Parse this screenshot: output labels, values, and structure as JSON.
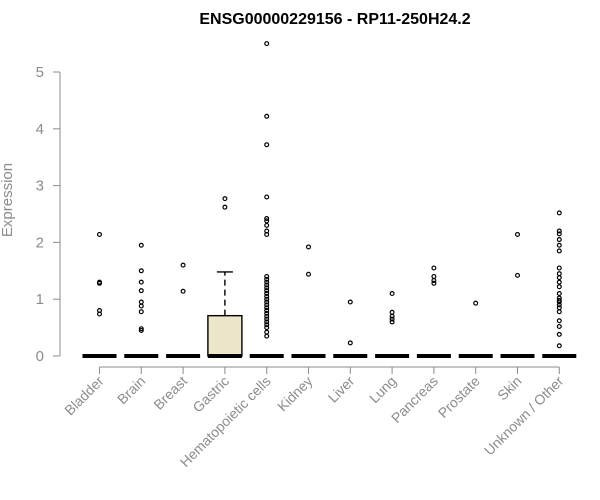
{
  "chart_data": {
    "type": "box",
    "title": "ENSG00000229156 - RP11-250H24.2",
    "xlabel": "",
    "ylabel": "Expression",
    "ylim": [
      0,
      5
    ],
    "yticks": [
      0,
      1,
      2,
      3,
      4,
      5
    ],
    "categories": [
      "Bladder",
      "Brain",
      "Breast",
      "Gastric",
      "Hematopoietic cells",
      "Kidney",
      "Liver",
      "Lung",
      "Pancreas",
      "Prostate",
      "Skin",
      "Unknown / Other"
    ],
    "series": [
      {
        "min": 0,
        "q1": 0,
        "median": 0,
        "q3": 0,
        "max": 0,
        "outliers": [
          2.14,
          1.3,
          1.28,
          0.8,
          0.74
        ]
      },
      {
        "min": 0,
        "q1": 0,
        "median": 0,
        "q3": 0,
        "max": 0,
        "outliers": [
          1.95,
          1.5,
          1.3,
          1.15,
          0.95,
          0.88,
          0.78,
          0.48,
          0.45
        ]
      },
      {
        "min": 0,
        "q1": 0,
        "median": 0,
        "q3": 0,
        "max": 0,
        "outliers": [
          1.6,
          1.14
        ]
      },
      {
        "min": 0,
        "q1": 0,
        "median": 0,
        "q3": 0.71,
        "max": 1.48,
        "outliers": [
          2.77,
          2.62
        ]
      },
      {
        "min": 0,
        "q1": 0,
        "median": 0,
        "q3": 0,
        "max": 0,
        "outliers": [
          5.5,
          4.22,
          3.72,
          2.8,
          2.42,
          2.38,
          2.3,
          2.2,
          2.14,
          1.4,
          1.35,
          1.3,
          1.25,
          1.2,
          1.15,
          1.1,
          1.05,
          1.0,
          0.95,
          0.9,
          0.85,
          0.8,
          0.75,
          0.7,
          0.65,
          0.6,
          0.55,
          0.5,
          0.42,
          0.35
        ]
      },
      {
        "min": 0,
        "q1": 0,
        "median": 0,
        "q3": 0,
        "max": 0,
        "outliers": [
          1.92,
          1.44
        ]
      },
      {
        "min": 0,
        "q1": 0,
        "median": 0,
        "q3": 0,
        "max": 0,
        "outliers": [
          0.95,
          0.23
        ]
      },
      {
        "min": 0,
        "q1": 0,
        "median": 0,
        "q3": 0,
        "max": 0,
        "outliers": [
          1.1,
          0.77,
          0.7,
          0.65,
          0.6
        ]
      },
      {
        "min": 0,
        "q1": 0,
        "median": 0,
        "q3": 0,
        "max": 0,
        "outliers": [
          1.55,
          1.4,
          1.33,
          1.28
        ]
      },
      {
        "min": 0,
        "q1": 0,
        "median": 0,
        "q3": 0,
        "max": 0,
        "outliers": [
          0.93
        ]
      },
      {
        "min": 0,
        "q1": 0,
        "median": 0,
        "q3": 0,
        "max": 0,
        "outliers": [
          2.14,
          1.42
        ]
      },
      {
        "min": 0,
        "q1": 0,
        "median": 0,
        "q3": 0,
        "max": 0,
        "outliers": [
          2.52,
          2.2,
          2.15,
          2.05,
          1.95,
          1.85,
          1.55,
          1.45,
          1.38,
          1.3,
          1.22,
          1.1,
          1.02,
          0.98,
          0.95,
          0.9,
          0.85,
          0.78,
          0.62,
          0.52,
          0.38,
          0.18
        ]
      }
    ],
    "box_fill": "#ece6ca",
    "axis_color": "#8c8c8c",
    "grid": false,
    "legend": "none"
  }
}
